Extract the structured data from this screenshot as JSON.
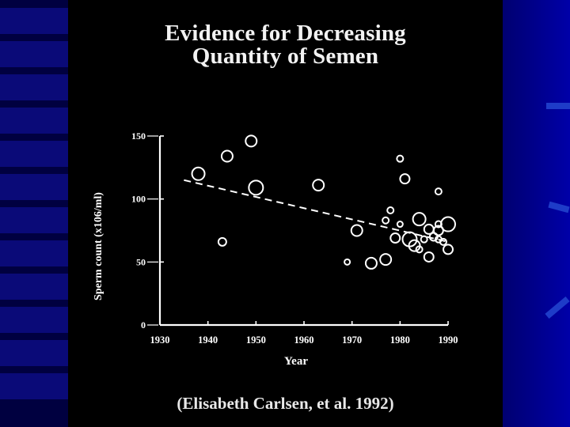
{
  "chart_data": {
    "type": "scatter",
    "title_lines": [
      "Evidence for Decreasing",
      "Quantity of Semen"
    ],
    "xlabel": "Year",
    "ylabel": "Sperm count (x106/ml)",
    "xlim": [
      1930,
      1990
    ],
    "ylim": [
      0,
      150
    ],
    "x_ticks": [
      1930,
      1940,
      1950,
      1960,
      1970,
      1980,
      1990
    ],
    "y_ticks": [
      0,
      50,
      100,
      150
    ],
    "grid": false,
    "points": [
      {
        "x": 1938,
        "y": 120,
        "r": 8
      },
      {
        "x": 1943,
        "y": 66,
        "r": 5
      },
      {
        "x": 1944,
        "y": 134,
        "r": 7
      },
      {
        "x": 1949,
        "y": 146,
        "r": 7
      },
      {
        "x": 1950,
        "y": 109,
        "r": 9
      },
      {
        "x": 1963,
        "y": 111,
        "r": 7
      },
      {
        "x": 1969,
        "y": 50,
        "r": 3.5
      },
      {
        "x": 1971,
        "y": 75,
        "r": 7
      },
      {
        "x": 1974,
        "y": 49,
        "r": 7
      },
      {
        "x": 1977,
        "y": 83,
        "r": 4
      },
      {
        "x": 1977,
        "y": 52,
        "r": 7
      },
      {
        "x": 1978,
        "y": 91,
        "r": 4
      },
      {
        "x": 1979,
        "y": 69,
        "r": 6
      },
      {
        "x": 1980,
        "y": 132,
        "r": 4
      },
      {
        "x": 1980,
        "y": 80,
        "r": 3.5
      },
      {
        "x": 1981,
        "y": 116,
        "r": 6
      },
      {
        "x": 1982,
        "y": 68,
        "r": 9
      },
      {
        "x": 1983,
        "y": 63,
        "r": 7
      },
      {
        "x": 1984,
        "y": 84,
        "r": 8
      },
      {
        "x": 1984,
        "y": 60,
        "r": 4
      },
      {
        "x": 1985,
        "y": 68,
        "r": 4
      },
      {
        "x": 1986,
        "y": 76,
        "r": 6
      },
      {
        "x": 1986,
        "y": 54,
        "r": 6
      },
      {
        "x": 1987,
        "y": 70,
        "r": 5
      },
      {
        "x": 1988,
        "y": 106,
        "r": 4
      },
      {
        "x": 1988,
        "y": 75,
        "r": 6
      },
      {
        "x": 1988,
        "y": 80,
        "r": 4
      },
      {
        "x": 1988,
        "y": 68,
        "r": 4
      },
      {
        "x": 1989,
        "y": 66,
        "r": 4
      },
      {
        "x": 1990,
        "y": 80,
        "r": 9
      },
      {
        "x": 1990,
        "y": 60,
        "r": 6
      }
    ],
    "trend_line": {
      "x": [
        1935,
        1990
      ],
      "y": [
        115,
        66
      ],
      "style": "dashed"
    }
  },
  "citation": "(Elisabeth Carlsen, et al. 1992)",
  "colors": {
    "background_outer": "#00008a",
    "slide_background": "#000000",
    "foreground": "#ffffff"
  }
}
